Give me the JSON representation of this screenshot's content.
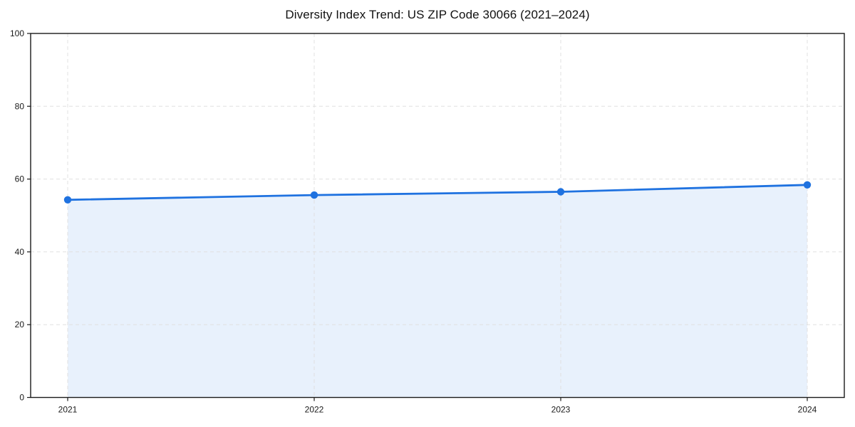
{
  "chart_data": {
    "type": "area",
    "title": "Diversity Index Trend: US ZIP Code 30066 (2021–2024)",
    "x": [
      2021,
      2022,
      2023,
      2024
    ],
    "xticks": [
      "2021",
      "2022",
      "2023",
      "2024"
    ],
    "series": [
      {
        "name": "Diversity Index",
        "values": [
          54.3,
          55.6,
          56.5,
          58.4
        ]
      }
    ],
    "xlabel": "",
    "ylabel": "",
    "ylim": [
      0,
      100
    ],
    "yticks": [
      0,
      20,
      40,
      60,
      80,
      100
    ],
    "grid": true,
    "grid_style": "dashed",
    "legend_position": "none",
    "colors": {
      "line": "#1f72e0",
      "marker": "#1f72e0",
      "fill": "rgba(31,114,224,0.10)",
      "grid": "#e0e0e0",
      "axis": "#1a1a1a",
      "text": "#1a1a1a",
      "background": "#ffffff"
    }
  }
}
